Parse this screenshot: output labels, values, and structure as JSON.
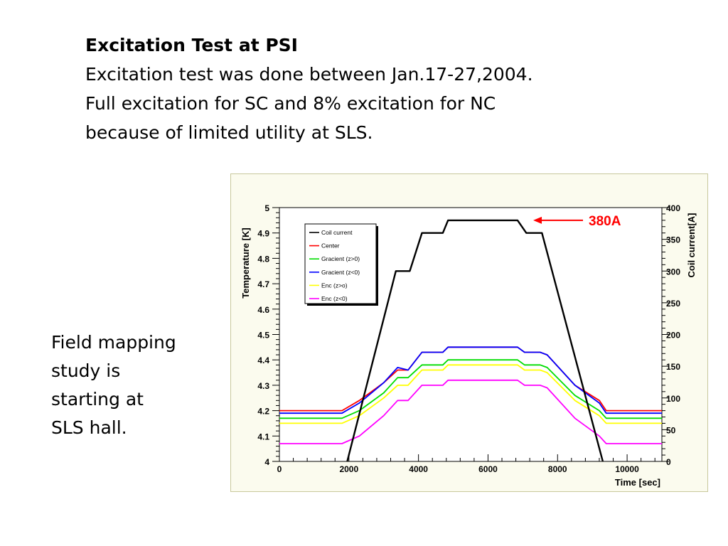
{
  "header": {
    "title": "Excitation Test at PSI",
    "lines": [
      "Excitation test was done between Jan.17-27,2004.",
      "Full excitation for SC and 8% excitation for NC",
      "because of limited utility at SLS."
    ]
  },
  "side_note": {
    "lines": [
      "Field mapping",
      "study is",
      "starting at",
      "SLS hall."
    ]
  },
  "chart_data": {
    "type": "line",
    "title": "",
    "xlabel": "Time [sec]",
    "ylabel": "Temperature [K]",
    "y2label": "Coil current[A]",
    "xlim": [
      0,
      11000
    ],
    "ylim": [
      4,
      5
    ],
    "y2lim": [
      0,
      400
    ],
    "x_ticks": [
      "0",
      "2000",
      "4000",
      "6000",
      "8000",
      "10000"
    ],
    "y_ticks": [
      "4",
      "4.1",
      "4.2",
      "4.3",
      "4.4",
      "4.5",
      "4.6",
      "4.7",
      "4.8",
      "4.9",
      "5"
    ],
    "y2_ticks": [
      "0",
      "50",
      "100",
      "150",
      "200",
      "250",
      "300",
      "350",
      "400"
    ],
    "grid": false,
    "legend": "top-left",
    "annotation": {
      "text": "380A",
      "color": "#ff0000",
      "x": 7300,
      "y2": 380
    },
    "series": [
      {
        "name": "Coil current",
        "axis": "right",
        "color": "#000000",
        "x": [
          1950,
          3350,
          3750,
          4100,
          4700,
          4850,
          6850,
          7100,
          7550,
          9300
        ],
        "y": [
          0,
          300,
          300,
          360,
          360,
          380,
          380,
          360,
          360,
          0
        ]
      },
      {
        "name": "Center",
        "axis": "left",
        "color": "#ff0000",
        "x": [
          0,
          1800,
          2300,
          3000,
          3400,
          3700,
          4100,
          4700,
          4850,
          6850,
          7050,
          7500,
          7700,
          8500,
          9200,
          9400,
          11000
        ],
        "y": [
          4.2,
          4.2,
          4.24,
          4.31,
          4.36,
          4.36,
          4.43,
          4.43,
          4.45,
          4.45,
          4.43,
          4.43,
          4.42,
          4.3,
          4.24,
          4.2,
          4.2
        ]
      },
      {
        "name": "Gracient (z>0)",
        "axis": "left",
        "color": "#00dd00",
        "x": [
          0,
          1800,
          2300,
          3000,
          3400,
          3700,
          4100,
          4700,
          4850,
          6850,
          7050,
          7500,
          7700,
          8500,
          9200,
          9400,
          11000
        ],
        "y": [
          4.17,
          4.17,
          4.2,
          4.27,
          4.33,
          4.33,
          4.38,
          4.38,
          4.4,
          4.4,
          4.38,
          4.38,
          4.37,
          4.26,
          4.2,
          4.17,
          4.17
        ]
      },
      {
        "name": "Gracient (z<0)",
        "axis": "left",
        "color": "#0000ff",
        "x": [
          0,
          1800,
          2300,
          3000,
          3400,
          3700,
          4100,
          4700,
          4850,
          6850,
          7050,
          7500,
          7700,
          8500,
          9200,
          9400,
          11000
        ],
        "y": [
          4.19,
          4.19,
          4.23,
          4.31,
          4.37,
          4.36,
          4.43,
          4.43,
          4.45,
          4.45,
          4.43,
          4.43,
          4.42,
          4.3,
          4.23,
          4.19,
          4.19
        ]
      },
      {
        "name": "Enc (z>o)",
        "axis": "left",
        "color": "#ffff00",
        "x": [
          0,
          1800,
          2300,
          3000,
          3400,
          3700,
          4100,
          4700,
          4850,
          6850,
          7050,
          7500,
          7700,
          8500,
          9200,
          9400,
          11000
        ],
        "y": [
          4.15,
          4.15,
          4.18,
          4.25,
          4.3,
          4.3,
          4.36,
          4.36,
          4.38,
          4.38,
          4.36,
          4.36,
          4.35,
          4.24,
          4.18,
          4.15,
          4.15
        ]
      },
      {
        "name": "Enc (z<0)",
        "axis": "left",
        "color": "#ff00ff",
        "x": [
          0,
          1800,
          2300,
          3000,
          3400,
          3700,
          4100,
          4700,
          4850,
          6850,
          7050,
          7500,
          7700,
          8500,
          9200,
          9400,
          11000
        ],
        "y": [
          4.07,
          4.07,
          4.1,
          4.18,
          4.24,
          4.24,
          4.3,
          4.3,
          4.32,
          4.32,
          4.3,
          4.3,
          4.29,
          4.17,
          4.1,
          4.07,
          4.07
        ]
      }
    ]
  }
}
